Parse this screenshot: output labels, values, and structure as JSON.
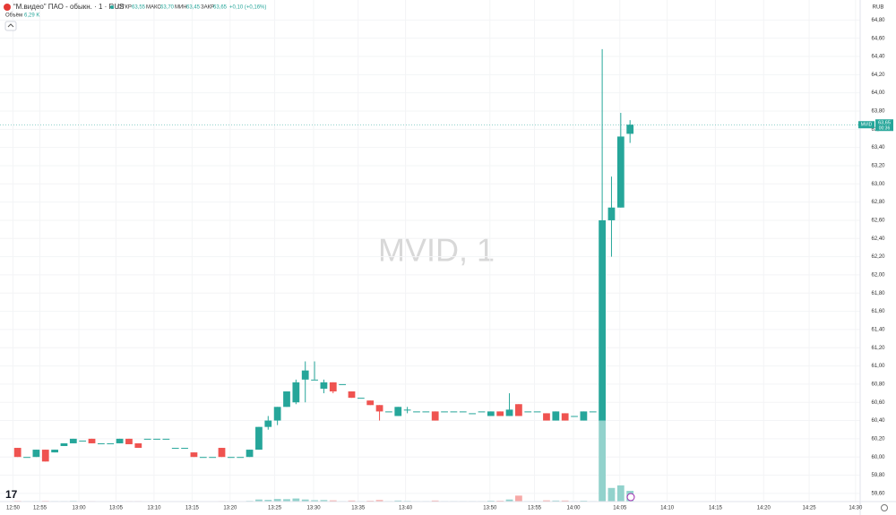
{
  "header": {
    "title": "“М.видео” ПАО - обыкн. · 1 · RUS",
    "open_label": "ОТКР",
    "open": "63,55",
    "high_label": "МАКС",
    "high": "63,70",
    "low_label": "МИН",
    "low": "63,45",
    "close_label": "ЗАКР",
    "close": "63,65",
    "change": "+0,10 (+0,16%)",
    "volume_label": "Объём",
    "volume": "6,29 K",
    "currency": "RUB",
    "watermark": "MVID, 1"
  },
  "price_tag": {
    "symbol": "MVID",
    "price": 63.65,
    "price_label": "63,65",
    "countdown": "00:36"
  },
  "chart_data": {
    "type": "candlestick",
    "up_color": "#26a69a",
    "down_color": "#ef5350",
    "volume_up_color": "#92d2cc",
    "volume_down_color": "#f7a9a7",
    "grid": true,
    "ylim": [
      59.51,
      65.02
    ],
    "yticks": [
      {
        "value": 59.6,
        "label": "59,60"
      },
      {
        "value": 59.8,
        "label": "59,80"
      },
      {
        "value": 60.0,
        "label": "60,00"
      },
      {
        "value": 60.2,
        "label": "60,20"
      },
      {
        "value": 60.4,
        "label": "60,40"
      },
      {
        "value": 60.6,
        "label": "60,60"
      },
      {
        "value": 60.8,
        "label": "60,80"
      },
      {
        "value": 61.0,
        "label": "61,00"
      },
      {
        "value": 61.2,
        "label": "61,20"
      },
      {
        "value": 61.4,
        "label": "61,40"
      },
      {
        "value": 61.6,
        "label": "61,60"
      },
      {
        "value": 61.8,
        "label": "61,80"
      },
      {
        "value": 62.0,
        "label": "62,00"
      },
      {
        "value": 62.2,
        "label": "62,20"
      },
      {
        "value": 62.4,
        "label": "62,40"
      },
      {
        "value": 62.6,
        "label": "62,60"
      },
      {
        "value": 62.8,
        "label": "62,80"
      },
      {
        "value": 63.0,
        "label": "63,00"
      },
      {
        "value": 63.2,
        "label": "63,20"
      },
      {
        "value": 63.4,
        "label": "63,40"
      },
      {
        "value": 63.6,
        "label": "63,60"
      },
      {
        "value": 63.8,
        "label": "63,80"
      },
      {
        "value": 64.0,
        "label": "64,00"
      },
      {
        "value": 64.2,
        "label": "64,20"
      },
      {
        "value": 64.4,
        "label": "64,40"
      },
      {
        "value": 64.6,
        "label": "64,60"
      },
      {
        "value": 64.8,
        "label": "64,80"
      }
    ],
    "xlim": [
      -1.9,
      90.8
    ],
    "xticks": [
      {
        "value": -0.5,
        "label": "12:50"
      },
      {
        "value": 2.4,
        "label": "12:55"
      },
      {
        "value": 6.6,
        "label": "13:00"
      },
      {
        "value": 10.6,
        "label": "13:05"
      },
      {
        "value": 14.7,
        "label": "13:10"
      },
      {
        "value": 18.8,
        "label": "13:15"
      },
      {
        "value": 22.9,
        "label": "13:20"
      },
      {
        "value": 27.7,
        "label": "13:25"
      },
      {
        "value": 31.9,
        "label": "13:30"
      },
      {
        "value": 36.7,
        "label": "13:35"
      },
      {
        "value": 41.8,
        "label": "13:40"
      },
      {
        "value": 50.9,
        "label": "13:50"
      },
      {
        "value": 55.7,
        "label": "13:55"
      },
      {
        "value": 59.9,
        "label": "14:00"
      },
      {
        "value": 64.9,
        "label": "14:05"
      },
      {
        "value": 70,
        "label": "14:10"
      },
      {
        "value": 75.2,
        "label": "14:15"
      },
      {
        "value": 80.4,
        "label": "14:20"
      },
      {
        "value": 85.3,
        "label": "14:25"
      },
      {
        "value": 90.3,
        "label": "14:30"
      }
    ],
    "ohlc": [
      [
        60.1,
        60.1,
        60.0,
        60.0
      ],
      [
        60.0,
        60.0,
        60.0,
        60.0
      ],
      [
        60.0,
        60.08,
        60.0,
        60.08
      ],
      [
        60.08,
        60.08,
        59.95,
        59.95
      ],
      [
        60.05,
        60.08,
        60.05,
        60.08
      ],
      [
        60.12,
        60.15,
        60.12,
        60.15
      ],
      [
        60.15,
        60.2,
        60.15,
        60.2
      ],
      [
        60.18,
        60.18,
        60.18,
        60.18
      ],
      [
        60.2,
        60.2,
        60.15,
        60.15
      ],
      [
        60.15,
        60.15,
        60.15,
        60.15
      ],
      [
        60.15,
        60.15,
        60.15,
        60.15
      ],
      [
        60.15,
        60.2,
        60.15,
        60.2
      ],
      [
        60.2,
        60.2,
        60.14,
        60.14
      ],
      [
        60.15,
        60.15,
        60.1,
        60.1
      ],
      [
        60.2,
        60.2,
        60.2,
        60.2
      ],
      [
        60.2,
        60.2,
        60.2,
        60.2
      ],
      [
        60.2,
        60.2,
        60.2,
        60.2
      ],
      [
        60.1,
        60.1,
        60.1,
        60.1
      ],
      [
        60.1,
        60.1,
        60.1,
        60.1
      ],
      [
        60.05,
        60.05,
        60.0,
        60.0
      ],
      [
        60.0,
        60.0,
        60.0,
        60.0
      ],
      [
        60.0,
        60.0,
        60.0,
        60.0
      ],
      [
        60.1,
        60.1,
        60.0,
        60.0
      ],
      [
        60.0,
        60.0,
        60.0,
        60.0
      ],
      [
        60.0,
        60.0,
        60.0,
        60.0
      ],
      [
        60.0,
        60.08,
        60.0,
        60.08
      ],
      [
        60.08,
        60.33,
        60.08,
        60.33
      ],
      [
        60.33,
        60.45,
        60.3,
        60.4
      ],
      [
        60.4,
        60.55,
        60.35,
        60.55
      ],
      [
        60.55,
        60.72,
        60.55,
        60.72
      ],
      [
        60.6,
        60.85,
        60.58,
        60.82
      ],
      [
        60.85,
        61.05,
        60.6,
        60.95
      ],
      [
        60.85,
        61.05,
        60.85,
        60.85
      ],
      [
        60.75,
        60.85,
        60.7,
        60.82
      ],
      [
        60.82,
        60.82,
        60.7,
        60.72
      ],
      [
        60.8,
        60.8,
        60.8,
        60.8
      ],
      [
        60.72,
        60.72,
        60.65,
        60.65
      ],
      [
        60.65,
        60.65,
        60.65,
        60.65
      ],
      [
        60.62,
        60.62,
        60.57,
        60.57
      ],
      [
        60.57,
        60.57,
        60.4,
        60.5
      ],
      [
        60.5,
        60.5,
        60.5,
        60.5
      ],
      [
        60.45,
        60.55,
        60.45,
        60.55
      ],
      [
        60.52,
        60.55,
        60.48,
        60.52
      ],
      [
        60.5,
        60.5,
        60.5,
        60.5
      ],
      [
        60.5,
        60.5,
        60.5,
        60.5
      ],
      [
        60.5,
        60.5,
        60.4,
        60.4
      ],
      [
        60.5,
        60.5,
        60.5,
        60.5
      ],
      [
        60.5,
        60.5,
        60.5,
        60.5
      ],
      [
        60.5,
        60.5,
        60.5,
        60.5
      ],
      [
        60.48,
        60.48,
        60.48,
        60.48
      ],
      [
        60.5,
        60.5,
        60.5,
        60.5
      ],
      [
        60.45,
        60.5,
        60.45,
        60.5
      ],
      [
        60.5,
        60.5,
        60.45,
        60.45
      ],
      [
        60.45,
        60.7,
        60.45,
        60.52
      ],
      [
        60.58,
        60.58,
        60.45,
        60.45
      ],
      [
        60.5,
        60.5,
        60.5,
        60.5
      ],
      [
        60.5,
        60.5,
        60.5,
        60.5
      ],
      [
        60.48,
        60.48,
        60.4,
        60.4
      ],
      [
        60.4,
        60.5,
        60.4,
        60.5
      ],
      [
        60.48,
        60.48,
        60.4,
        60.4
      ],
      [
        60.45,
        60.45,
        60.45,
        60.45
      ],
      [
        60.4,
        60.5,
        60.4,
        60.5
      ],
      [
        60.5,
        60.5,
        60.5,
        60.5
      ],
      [
        60.4,
        64.48,
        60.4,
        62.6
      ],
      [
        62.6,
        63.08,
        62.2,
        62.74
      ],
      [
        62.74,
        63.78,
        62.74,
        63.52
      ],
      [
        63.55,
        63.7,
        63.45,
        63.65
      ]
    ],
    "volume_ylim": [
      0,
      100
    ],
    "volume": [
      0.4,
      0.3,
      0.3,
      0.4,
      0.3,
      0.3,
      0.4,
      0.2,
      0.3,
      0.2,
      0.2,
      0.3,
      0.3,
      0.3,
      0.2,
      0.2,
      0.2,
      0.2,
      0.2,
      0.3,
      0.2,
      0.2,
      0.3,
      0.2,
      0.2,
      0.4,
      1.2,
      1.0,
      1.5,
      1.4,
      1.8,
      1.2,
      0.8,
      0.9,
      0.7,
      0.3,
      0.6,
      0.3,
      0.5,
      0.9,
      0.3,
      0.6,
      0.4,
      0.3,
      0.3,
      0.6,
      0.3,
      0.3,
      0.3,
      0.3,
      0.3,
      0.5,
      0.5,
      1.2,
      3.5,
      0.3,
      0.3,
      0.7,
      0.6,
      0.6,
      0.3,
      0.5,
      0.3,
      48,
      8,
      9.5,
      6.29
    ]
  }
}
